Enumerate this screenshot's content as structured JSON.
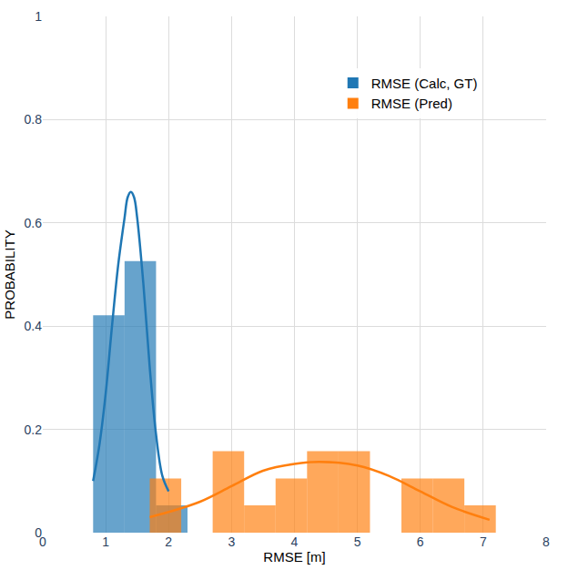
{
  "chart_data": {
    "type": "histogram",
    "xlabel": "RMSE [m]",
    "ylabel": "PROBABILITY",
    "xlim": [
      0,
      8
    ],
    "xticks": [
      0,
      1,
      2,
      3,
      4,
      5,
      6,
      7,
      8
    ],
    "ylim": [
      0,
      1
    ],
    "yticks": [
      0,
      0.2,
      0.4,
      0.6,
      0.8,
      1
    ],
    "grid": true,
    "legend": "top right",
    "series": [
      {
        "name": "RMSE (Calc, GT)",
        "color": "#1f77b4",
        "bins": [
          0.8,
          1.3,
          1.8,
          2.3
        ],
        "values": [
          0.421,
          0.526,
          0.053
        ],
        "curve": {
          "x": [
            0.8,
            0.9,
            1.0,
            1.1,
            1.2,
            1.3,
            1.35,
            1.4,
            1.45,
            1.5,
            1.6,
            1.7,
            1.8,
            1.9,
            2.0
          ],
          "values": [
            0.1,
            0.17,
            0.27,
            0.4,
            0.52,
            0.61,
            0.65,
            0.66,
            0.65,
            0.61,
            0.48,
            0.32,
            0.19,
            0.11,
            0.08
          ]
        }
      },
      {
        "name": "RMSE (Pred)",
        "color": "#ff7f0e",
        "bins": [
          1.7,
          2.2,
          2.7,
          3.2,
          3.7,
          4.2,
          4.7,
          5.2,
          5.7,
          6.2,
          6.7,
          7.2
        ],
        "values": [
          0.105,
          0,
          0.158,
          0.053,
          0.105,
          0.158,
          0.158,
          0,
          0.105,
          0.105,
          0.053
        ],
        "curve": {
          "x": [
            1.7,
            2.0,
            2.5,
            3.0,
            3.5,
            4.0,
            4.4,
            5.0,
            5.5,
            6.0,
            6.5,
            7.1
          ],
          "values": [
            0.03,
            0.04,
            0.06,
            0.09,
            0.12,
            0.133,
            0.137,
            0.13,
            0.11,
            0.08,
            0.05,
            0.025
          ]
        }
      }
    ]
  }
}
